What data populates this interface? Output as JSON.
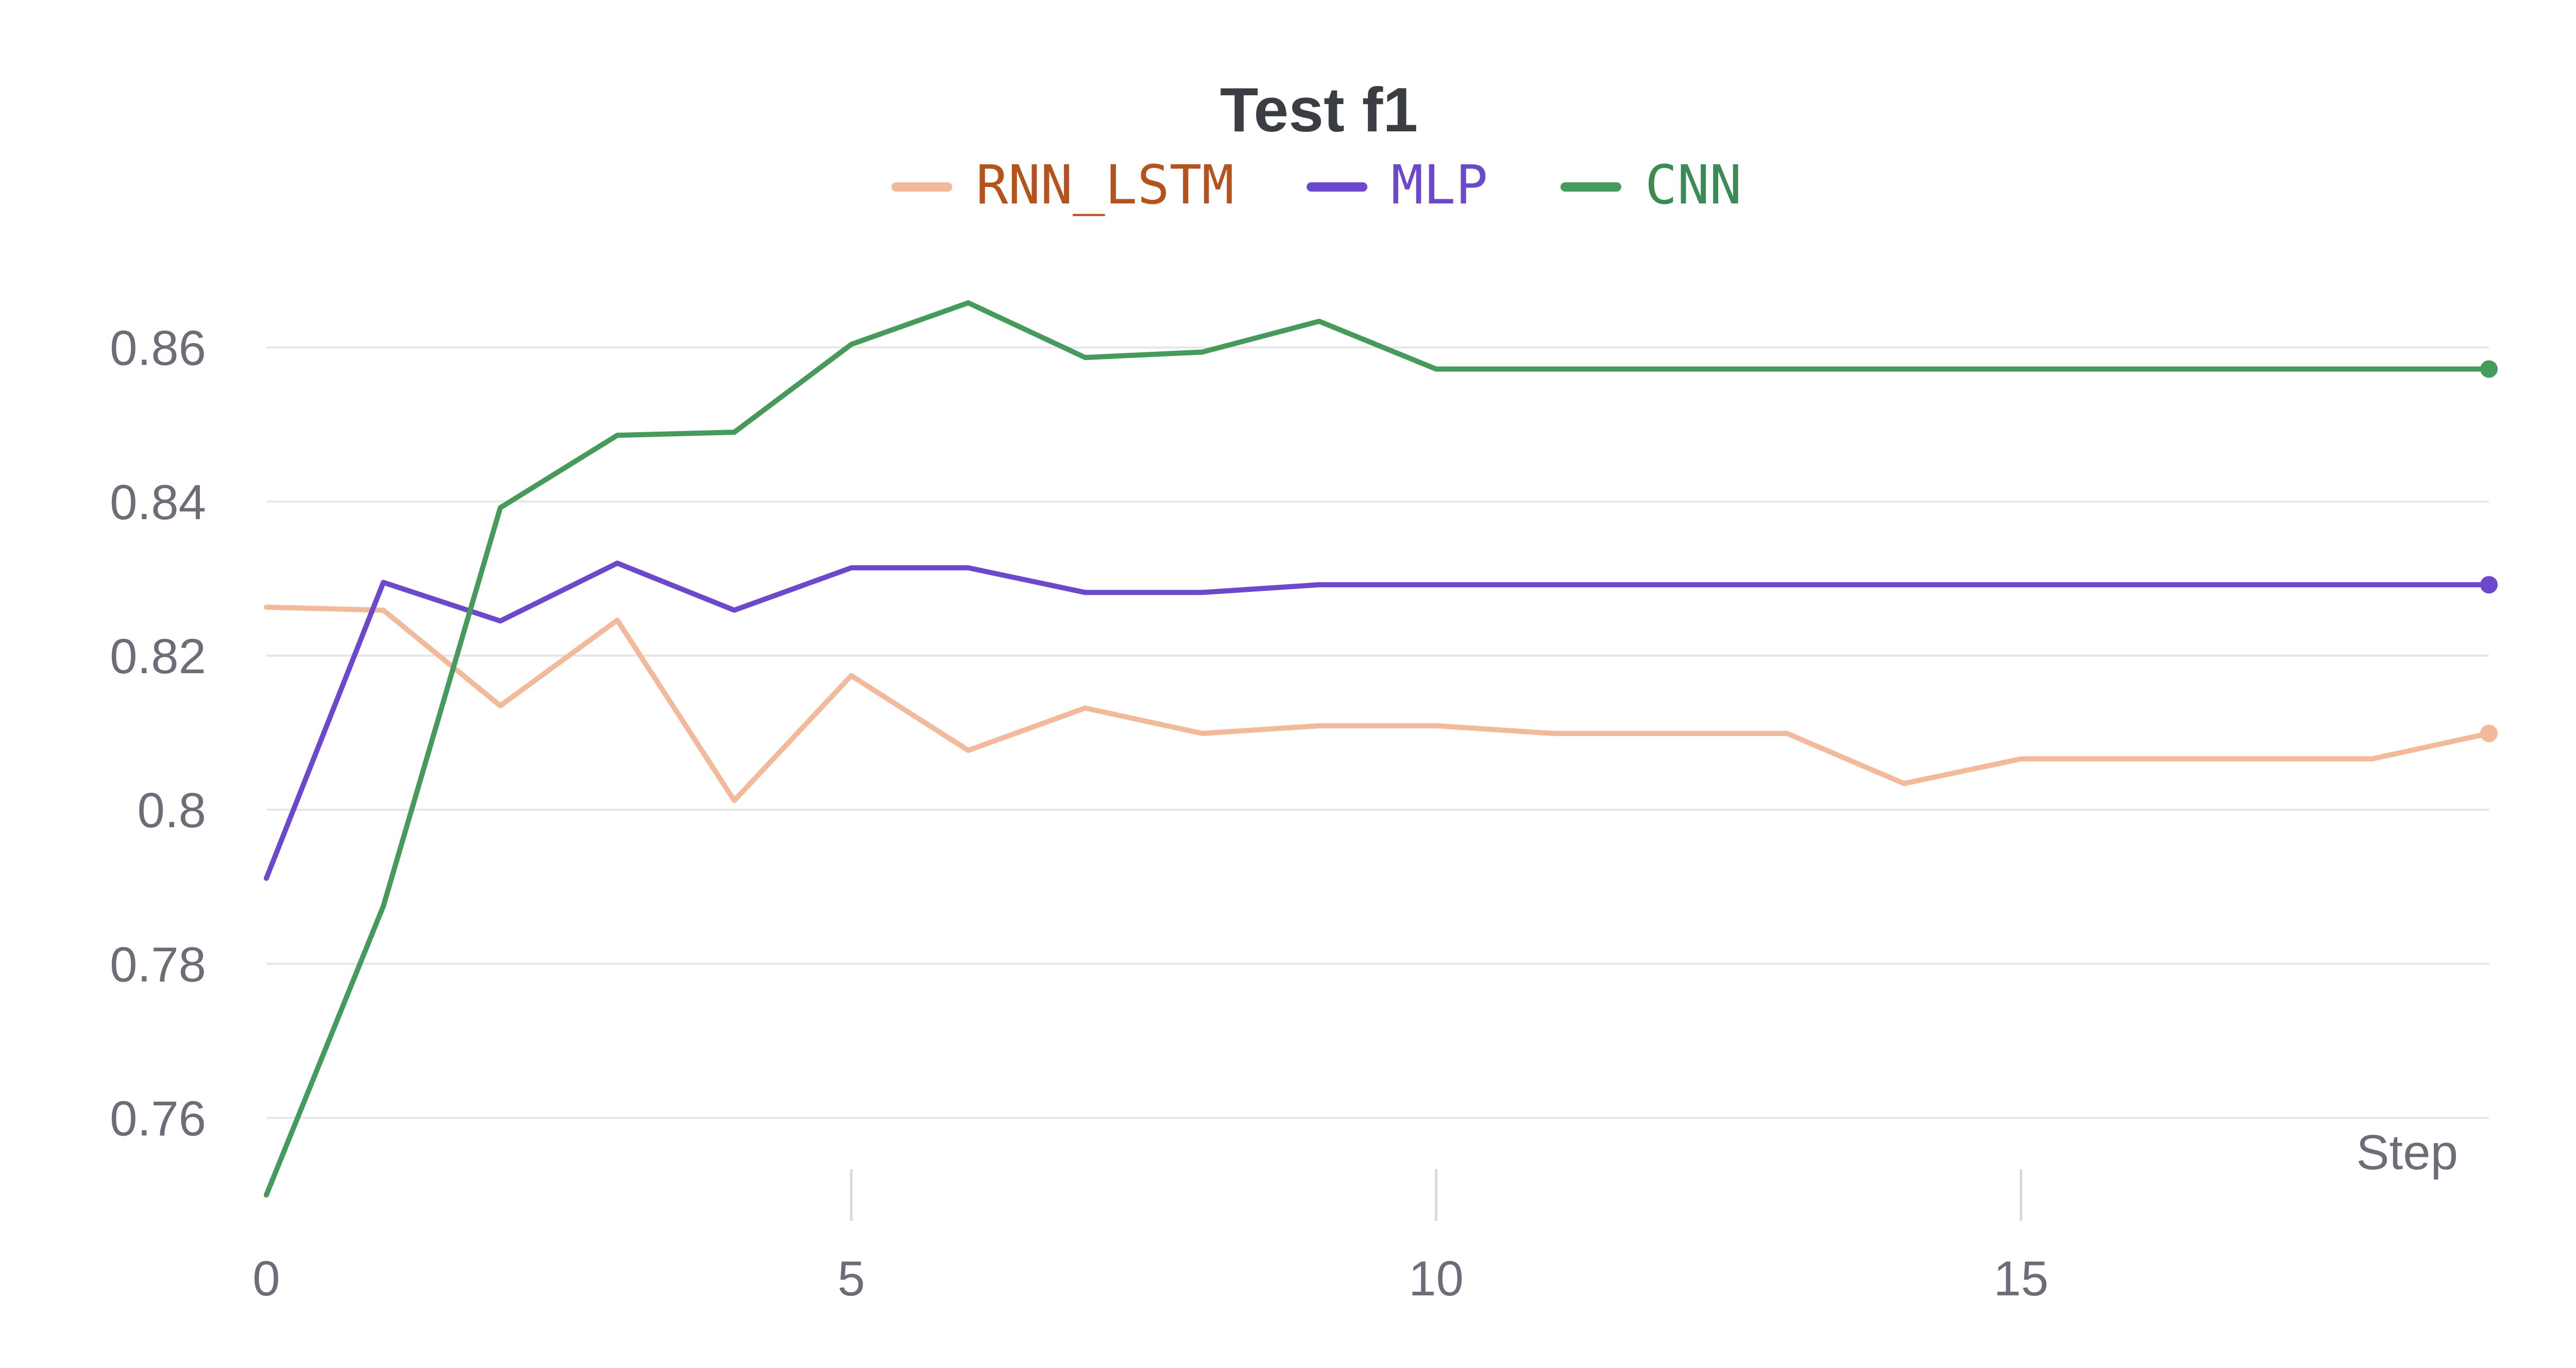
{
  "chart_data": {
    "type": "line",
    "title": "Test f1",
    "xlabel": "Step",
    "ylabel": "",
    "x": [
      0,
      1,
      2,
      3,
      4,
      5,
      6,
      7,
      8,
      9,
      10,
      11,
      12,
      13,
      14,
      15,
      16,
      17,
      18,
      19
    ],
    "xlim": [
      0,
      19
    ],
    "ylim": [
      0.75,
      0.869
    ],
    "x_ticks": [
      0,
      5,
      10,
      15
    ],
    "x_tick_labels": [
      "0",
      "5",
      "10",
      "15"
    ],
    "y_ticks": [
      0.76,
      0.78,
      0.8,
      0.82,
      0.84,
      0.86
    ],
    "y_tick_labels": [
      "0.76",
      "0.78",
      "0.8",
      "0.82",
      "0.84",
      "0.86"
    ],
    "grid": true,
    "legend_position": "top-center",
    "series": [
      {
        "name": "RNN_LSTM",
        "color": "#f2b99a",
        "text_color": "#b5531f",
        "values": [
          0.8263,
          0.8259,
          0.8135,
          0.8246,
          0.8012,
          0.8174,
          0.8077,
          0.8132,
          0.8099,
          0.8109,
          0.8109,
          0.8099,
          0.8099,
          0.8099,
          0.8034,
          0.8066,
          0.8066,
          0.8066,
          0.8066,
          0.8099
        ]
      },
      {
        "name": "MLP",
        "color": "#6b48cc",
        "text_color": "#6b48cc",
        "values": [
          0.7911,
          0.8295,
          0.8245,
          0.832,
          0.8259,
          0.8314,
          0.8314,
          0.8282,
          0.8282,
          0.8292,
          0.8292,
          0.8292,
          0.8292,
          0.8292,
          0.8292,
          0.8292,
          0.8292,
          0.8292,
          0.8292,
          0.8292
        ]
      },
      {
        "name": "CNN",
        "color": "#469a5c",
        "text_color": "#3d8b54",
        "values": [
          0.75,
          0.7875,
          0.8392,
          0.8486,
          0.849,
          0.8604,
          0.8658,
          0.8587,
          0.8594,
          0.8634,
          0.8572,
          0.8572,
          0.8572,
          0.8572,
          0.8572,
          0.8572,
          0.8572,
          0.8572,
          0.8572,
          0.8572
        ]
      }
    ]
  }
}
